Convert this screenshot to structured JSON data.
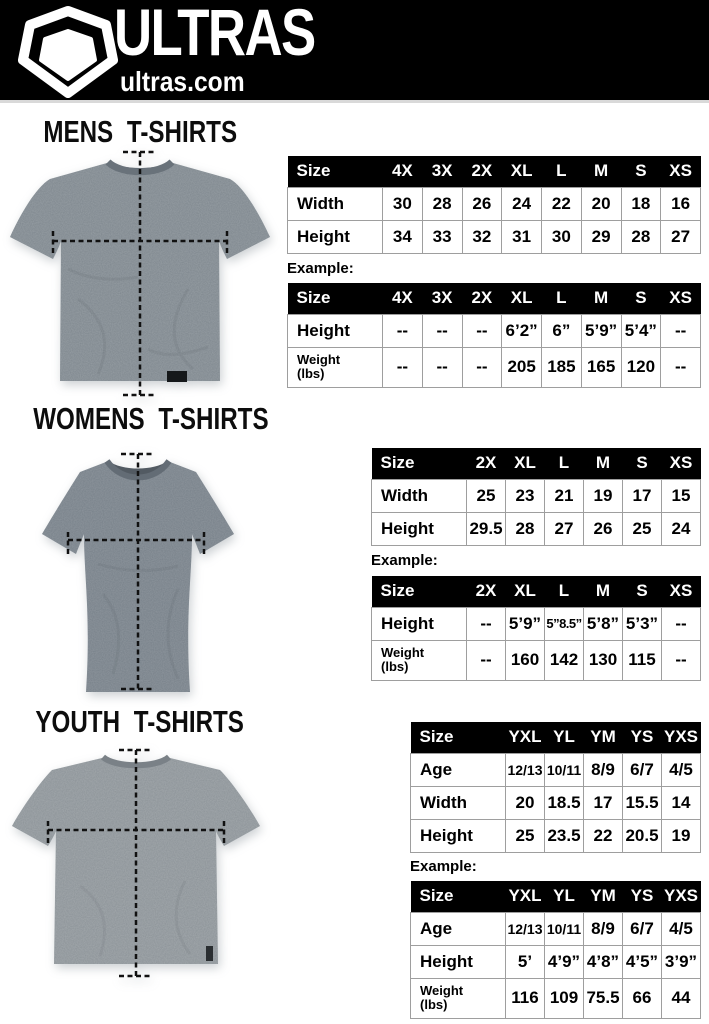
{
  "header": {
    "brand": "ULTRAS",
    "site": "ultras.com",
    "logo_icon": "pentagon-crest-icon"
  },
  "colors": {
    "header_bg": "#000000",
    "table_header_bg": "#000000",
    "table_header_text": "#ffffff",
    "table_border": "#9e9e9e",
    "measure_line": "#111111",
    "mens_shirt": "#7d868d",
    "mens_collar": "#69727a",
    "womens_shirt": "#767f88",
    "womens_collar": "#636c75",
    "youth_shirt": "#8a9196",
    "youth_collar": "#7a8187"
  },
  "sections": [
    {
      "id": "mens",
      "title": "MENS T-SHIRTS",
      "example_label": "Example:",
      "size_table": {
        "columns": [
          "Size",
          "4X",
          "3X",
          "2X",
          "XL",
          "L",
          "M",
          "S",
          "XS"
        ],
        "rows": [
          {
            "label": "Width",
            "values": [
              "30",
              "28",
              "26",
              "24",
              "22",
              "20",
              "18",
              "16"
            ]
          },
          {
            "label": "Height",
            "values": [
              "34",
              "33",
              "32",
              "31",
              "30",
              "29",
              "28",
              "27"
            ]
          }
        ]
      },
      "example_table": {
        "columns": [
          "Size",
          "4X",
          "3X",
          "2X",
          "XL",
          "L",
          "M",
          "S",
          "XS"
        ],
        "rows": [
          {
            "label": "Height",
            "values": [
              "--",
              "--",
              "--",
              "6’2”",
              "6”",
              "5’9”",
              "5’4”",
              "--"
            ]
          },
          {
            "label": "Weight\n(lbs)",
            "values": [
              "--",
              "--",
              "--",
              "205",
              "185",
              "165",
              "120",
              "--"
            ]
          }
        ]
      }
    },
    {
      "id": "womens",
      "title": "WOMENS T-SHIRTS",
      "example_label": "Example:",
      "size_table": {
        "columns": [
          "Size",
          "2X",
          "XL",
          "L",
          "M",
          "S",
          "XS"
        ],
        "rows": [
          {
            "label": "Width",
            "values": [
              "25",
              "23",
              "21",
              "19",
              "17",
              "15"
            ]
          },
          {
            "label": "Height",
            "values": [
              "29.5",
              "28",
              "27",
              "26",
              "25",
              "24"
            ]
          }
        ]
      },
      "example_table": {
        "columns": [
          "Size",
          "2X",
          "XL",
          "L",
          "M",
          "S",
          "XS"
        ],
        "rows": [
          {
            "label": "Height",
            "values": [
              "--",
              "5’9”",
              "5”8.5”",
              "5’8”",
              "5’3”",
              "--"
            ]
          },
          {
            "label": "Weight\n(lbs)",
            "values": [
              "--",
              "160",
              "142",
              "130",
              "115",
              "--"
            ]
          }
        ]
      }
    },
    {
      "id": "youth",
      "title": "YOUTH T-SHIRTS",
      "example_label": "Example:",
      "size_table": {
        "columns": [
          "Size",
          "YXL",
          "YL",
          "YM",
          "YS",
          "YXS"
        ],
        "rows": [
          {
            "label": "Age",
            "values": [
              "12/13",
              "10/11",
              "8/9",
              "6/7",
              "4/5"
            ]
          },
          {
            "label": "Width",
            "values": [
              "20",
              "18.5",
              "17",
              "15.5",
              "14"
            ]
          },
          {
            "label": "Height",
            "values": [
              "25",
              "23.5",
              "22",
              "20.5",
              "19"
            ]
          }
        ]
      },
      "example_table": {
        "columns": [
          "Size",
          "YXL",
          "YL",
          "YM",
          "YS",
          "YXS"
        ],
        "rows": [
          {
            "label": "Age",
            "values": [
              "12/13",
              "10/11",
              "8/9",
              "6/7",
              "4/5"
            ]
          },
          {
            "label": "Height",
            "values": [
              "5’",
              "4’9”",
              "4’8”",
              "4’5”",
              "3’9”"
            ]
          },
          {
            "label": "Weight\n(lbs)",
            "values": [
              "116",
              "109",
              "75.5",
              "66",
              "44"
            ]
          }
        ]
      }
    }
  ]
}
